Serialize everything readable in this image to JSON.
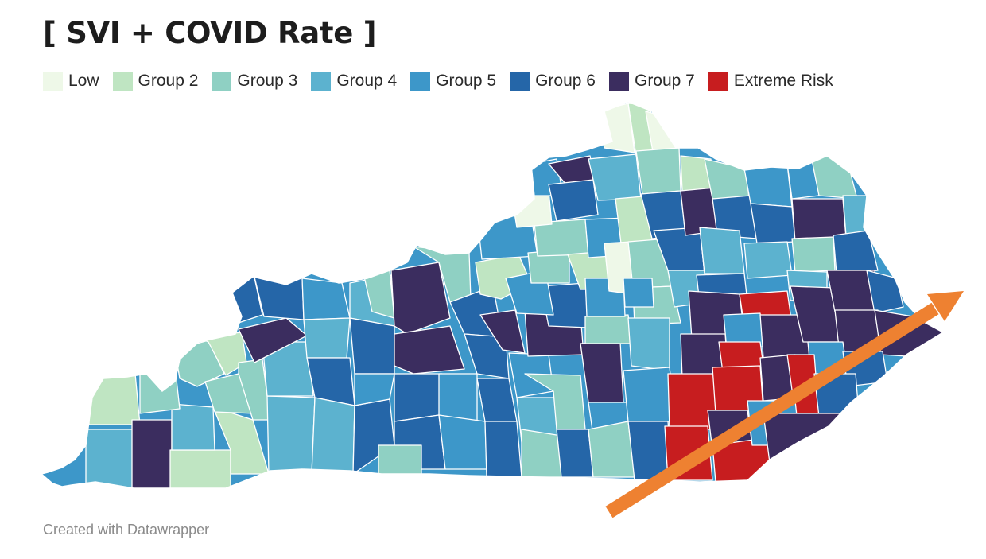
{
  "title": "[ SVI + COVID Rate ]",
  "legend": [
    {
      "label": "Low",
      "color": "#eef8e8"
    },
    {
      "label": "Group 2",
      "color": "#bfe5c2"
    },
    {
      "label": "Group 3",
      "color": "#8fd0c3"
    },
    {
      "label": "Group 4",
      "color": "#5cb2cf"
    },
    {
      "label": "Group 5",
      "color": "#3d97c9"
    },
    {
      "label": "Group 6",
      "color": "#2566a8"
    },
    {
      "label": "Group 7",
      "color": "#3b2d5f"
    },
    {
      "label": "Extreme Risk",
      "color": "#c71d1f"
    }
  ],
  "footer": "Created with Datawrapper",
  "annotation": {
    "type": "arrow",
    "color": "#ee8131"
  }
}
